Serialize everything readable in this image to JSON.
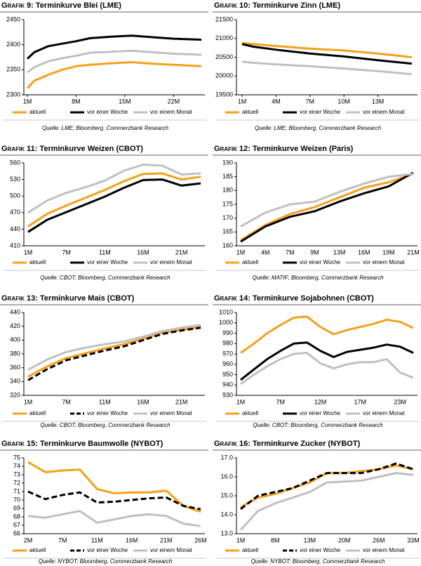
{
  "chart_data": [
    {
      "type": "line",
      "figure_label": "Grafik 9:",
      "title": "Terminkurve Blei (LME)",
      "source": "Quelle: LME; Bloomberg, Commerzbank Research",
      "x": [
        1,
        2,
        4,
        6,
        8,
        10,
        13,
        16,
        19,
        22,
        26
      ],
      "xlim": [
        0.5,
        26.5
      ],
      "xticks": [
        {
          "value": 1,
          "label": "1M"
        },
        {
          "value": 8,
          "label": "8M"
        },
        {
          "value": 15,
          "label": "15M"
        },
        {
          "value": 22,
          "label": "22M"
        }
      ],
      "ylim": [
        2300,
        2450
      ],
      "yticks": [
        2300,
        2350,
        2400,
        2450
      ],
      "series": [
        {
          "name": "aktuell",
          "color": "#f5a01a",
          "values": [
            2313,
            2328,
            2340,
            2350,
            2357,
            2360,
            2363,
            2365,
            2362,
            2360,
            2357
          ]
        },
        {
          "name": "vor einer Woche",
          "color": "#000000",
          "values": [
            2372,
            2385,
            2397,
            2402,
            2407,
            2413,
            2416,
            2418,
            2415,
            2412,
            2410
          ]
        },
        {
          "name": "vor einem Monat",
          "color": "#c0c0c0",
          "values": [
            2345,
            2355,
            2367,
            2373,
            2378,
            2384,
            2386,
            2388,
            2385,
            2382,
            2380
          ]
        }
      ]
    },
    {
      "type": "line",
      "figure_label": "Grafik 10:",
      "title": "Terminkurve Zinn (LME)",
      "source": "Quelle: LME; Bloomberg, Commerzbank Research",
      "x": [
        1,
        2,
        4,
        7,
        10,
        13,
        16
      ],
      "xlim": [
        0.5,
        16.5
      ],
      "xticks": [
        {
          "value": 1,
          "label": "1M"
        },
        {
          "value": 4,
          "label": "4M"
        },
        {
          "value": 7,
          "label": "7M"
        },
        {
          "value": 10,
          "label": "10M"
        },
        {
          "value": 13,
          "label": "13M"
        }
      ],
      "ylim": [
        19500,
        21500
      ],
      "yticks": [
        19500,
        20000,
        20500,
        21000,
        21500
      ],
      "series": [
        {
          "name": "aktuell",
          "color": "#f5a01a",
          "values": [
            20880,
            20850,
            20800,
            20730,
            20680,
            20600,
            20500
          ]
        },
        {
          "name": "vor einer Woche",
          "color": "#000000",
          "values": [
            20850,
            20780,
            20700,
            20600,
            20520,
            20420,
            20330
          ]
        },
        {
          "name": "vor einem Monat",
          "color": "#c0c0c0",
          "values": [
            20380,
            20350,
            20310,
            20260,
            20200,
            20130,
            20050
          ]
        }
      ]
    },
    {
      "type": "line",
      "figure_label": "Grafik 11:",
      "title": "Terminkurve Weizen (CBOT)",
      "source": "Quelle: CBOT; Bloomberg, Commerzbank Research",
      "categories": [
        "1M",
        null,
        "7M",
        null,
        "11M",
        null,
        "16M",
        null,
        "21M",
        null
      ],
      "ylim": [
        410,
        560
      ],
      "yticks": [
        410,
        440,
        470,
        500,
        530,
        560
      ],
      "series": [
        {
          "name": "aktuell",
          "color": "#f5a01a",
          "values": [
            445,
            468,
            483,
            497,
            511,
            527,
            540,
            541,
            530,
            535
          ]
        },
        {
          "name": "vor einer Woche",
          "color": "#000000",
          "values": [
            435,
            457,
            471,
            485,
            499,
            515,
            529,
            530,
            519,
            523
          ]
        },
        {
          "name": "vor einem Monat",
          "color": "#c0c0c0",
          "values": [
            470,
            492,
            506,
            516,
            528,
            546,
            557,
            555,
            539,
            541
          ]
        }
      ]
    },
    {
      "type": "line",
      "figure_label": "Grafik 12:",
      "title": "Terminkurve Weizen (Paris)",
      "source": "Quelle: MATIF; Bloomberg, Commerzbank Research",
      "categories": [
        "1M",
        "4M",
        "7M",
        "9M",
        "13M",
        "16M",
        "19M",
        "21M"
      ],
      "ylim": [
        160,
        190
      ],
      "yticks": [
        160,
        165,
        170,
        175,
        180,
        185,
        190
      ],
      "series": [
        {
          "name": "aktuell",
          "color": "#f5a01a",
          "values": [
            162,
            167.5,
            171.5,
            174,
            177.5,
            181,
            183,
            186
          ]
        },
        {
          "name": "vor einer Woche",
          "color": "#000000",
          "values": [
            161.5,
            167,
            170.5,
            172.5,
            176,
            179,
            181.5,
            186.5
          ]
        },
        {
          "name": "vor einem Monat",
          "color": "#c0c0c0",
          "values": [
            167,
            172,
            175,
            176,
            179.5,
            182.5,
            185,
            186
          ]
        }
      ]
    },
    {
      "type": "line",
      "figure_label": "Grafik 13:",
      "title": "Terminkurve Mais (CBOT)",
      "source": "Quelle: CBOT; Bloomberg, Commerzbank Research",
      "categories": [
        "1M",
        null,
        "7M",
        null,
        "11M",
        null,
        "16M",
        null,
        "21M",
        null
      ],
      "ylim": [
        320,
        440
      ],
      "yticks": [
        320,
        340,
        360,
        380,
        400,
        420,
        440
      ],
      "series": [
        {
          "name": "aktuell",
          "color": "#f5a01a",
          "values": [
            347,
            362,
            374,
            381,
            388,
            394,
            402,
            411,
            415,
            419
          ]
        },
        {
          "name": "vor einer Woche",
          "color": "#000000",
          "dash": true,
          "values": [
            342,
            358,
            371,
            378,
            385,
            391,
            400,
            409,
            414,
            418
          ]
        },
        {
          "name": "vor einem Monat",
          "color": "#c0c0c0",
          "values": [
            357,
            372,
            383,
            389,
            394,
            398,
            405,
            413,
            418,
            422
          ]
        }
      ]
    },
    {
      "type": "line",
      "figure_label": "Grafik 14:",
      "title": "Terminkurve Sojabohnen (CBOT)",
      "source": "Quelle: CBOT; Bloomberg, Commerzbank Research",
      "categories": [
        "1M",
        null,
        null,
        "7M",
        null,
        null,
        "12M",
        null,
        null,
        "17M",
        null,
        null,
        "23M",
        null
      ],
      "ylim": [
        930,
        1010
      ],
      "yticks": [
        930,
        940,
        950,
        960,
        970,
        980,
        990,
        1000,
        1010
      ],
      "series": [
        {
          "name": "aktuell",
          "color": "#f5a01a",
          "values": [
            971,
            980,
            990,
            998,
            1005,
            1006,
            996,
            989,
            993,
            996,
            999,
            1003,
            1001,
            995
          ]
        },
        {
          "name": "vor einer Woche",
          "color": "#000000",
          "values": [
            945,
            955,
            965,
            973,
            980,
            981,
            973,
            967,
            972,
            974,
            976,
            979,
            977,
            971
          ]
        },
        {
          "name": "vor einem Monat",
          "color": "#c0c0c0",
          "values": [
            941,
            950,
            958,
            965,
            970,
            971,
            961,
            956,
            960,
            962,
            962,
            965,
            952,
            947
          ]
        }
      ]
    },
    {
      "type": "line",
      "figure_label": "Grafik 15:",
      "title": "Terminkurve Baumwolle (NYBOT)",
      "source": "Quelle: NYBOT; Bloomberg, Commerzbank Research",
      "categories": [
        "2M",
        null,
        "7M",
        null,
        "11M",
        null,
        "16M",
        null,
        "21M",
        null,
        "26M"
      ],
      "ylim": [
        66,
        75
      ],
      "yticks": [
        66,
        67,
        68,
        69,
        70,
        71,
        72,
        73,
        74,
        75
      ],
      "series": [
        {
          "name": "aktuell",
          "color": "#f5a01a",
          "values": [
            74.5,
            73.3,
            73.5,
            73.6,
            71.3,
            70.8,
            70.9,
            70.9,
            71.1,
            69.3,
            68.6
          ]
        },
        {
          "name": "vor einer Woche",
          "color": "#000000",
          "dash": true,
          "values": [
            71.0,
            70.1,
            70.6,
            70.9,
            69.7,
            69.8,
            70.0,
            70.2,
            70.3,
            69.3,
            68.9
          ]
        },
        {
          "name": "vor einem Monat",
          "color": "#c0c0c0",
          "values": [
            68.1,
            67.9,
            68.3,
            68.7,
            67.3,
            67.7,
            68.1,
            68.3,
            68.1,
            67.2,
            66.9
          ]
        }
      ]
    },
    {
      "type": "line",
      "figure_label": "Grafik 16:",
      "title": "Terminkurve Zucker (NYBOT)",
      "source": "Quelle: NYBOT; Bloomberg, Commerzbank Research",
      "categories": [
        "1M",
        null,
        "8M",
        null,
        "13M",
        null,
        "20M",
        null,
        "26M",
        null,
        "33M"
      ],
      "ylim": [
        13,
        17
      ],
      "yticks": [
        {
          "value": 13,
          "label": "13.0"
        },
        {
          "value": 14,
          "label": "14.0"
        },
        {
          "value": 15,
          "label": "15.0"
        },
        {
          "value": 16,
          "label": "16.0"
        },
        {
          "value": 17,
          "label": "17.0"
        }
      ],
      "series": [
        {
          "name": "aktuell",
          "color": "#f5a01a",
          "values": [
            14.4,
            14.9,
            15.1,
            15.4,
            15.7,
            16.2,
            16.2,
            16.3,
            16.4,
            16.6,
            16.4
          ]
        },
        {
          "name": "vor einer Woche",
          "color": "#000000",
          "dash": true,
          "values": [
            14.3,
            15.0,
            15.2,
            15.4,
            15.8,
            16.2,
            16.2,
            16.2,
            16.4,
            16.7,
            16.4
          ]
        },
        {
          "name": "vor einem Monat",
          "color": "#c0c0c0",
          "values": [
            13.2,
            14.2,
            14.6,
            14.9,
            15.2,
            15.7,
            15.75,
            15.8,
            16.0,
            16.2,
            16.1
          ]
        }
      ]
    }
  ]
}
